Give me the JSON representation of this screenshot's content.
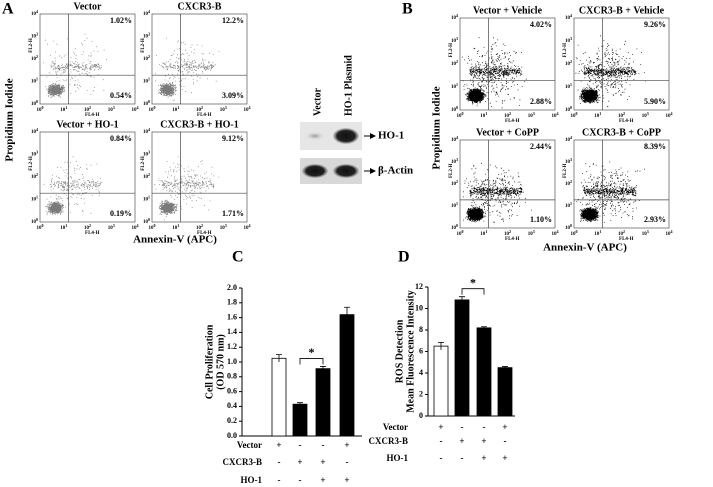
{
  "panel_a": {
    "letter": "A",
    "ylabel": "Propidium Iodide",
    "xlabel": "Annexin-V (APC)",
    "plots": [
      {
        "title": "Vector",
        "upper": "1.02%",
        "lower": "0.54%"
      },
      {
        "title": "CXCR3-B",
        "upper": "12.2%",
        "lower": "3.09%"
      },
      {
        "title": "Vector + HO-1",
        "upper": "0.84%",
        "lower": "0.19%"
      },
      {
        "title": "CXCR3-B + HO-1",
        "upper": "9.12%",
        "lower": "1.71%"
      }
    ]
  },
  "panel_b": {
    "letter": "B",
    "ylabel": "Propidium Iodide",
    "xlabel": "Annexin-V (APC)",
    "plots": [
      {
        "title": "Vector + Vehicle",
        "upper": "4.02%",
        "lower": "2.88%"
      },
      {
        "title": "CXCR3-B + Vehicle",
        "upper": "9.26%",
        "lower": "5.90%"
      },
      {
        "title": "Vector + CoPP",
        "upper": "2.44%",
        "lower": "1.10%"
      },
      {
        "title": "CXCR3-B + CoPP",
        "upper": "8.39%",
        "lower": "2.93%"
      }
    ]
  },
  "flow_axis": {
    "x_name": "FL4-H",
    "y_name": "FL2-H",
    "tick_base": "10",
    "tick_exps": [
      "0",
      "1",
      "2",
      "3",
      "4"
    ]
  },
  "blot": {
    "lanes": [
      "Vector",
      "HO-1 Plasmid"
    ],
    "bands": [
      "HO-1",
      "β-Actin"
    ]
  },
  "chart_data": [
    {
      "type": "bar",
      "letter": "C",
      "ylabel": [
        "Cell Proliferation",
        "(OD 570 nm)"
      ],
      "values": [
        1.05,
        0.43,
        0.91,
        1.64
      ],
      "errors": [
        0.05,
        0.02,
        0.03,
        0.1
      ],
      "colors": [
        "#ffffff",
        "#000000",
        "#000000",
        "#000000"
      ],
      "ylim": [
        0,
        2
      ],
      "yticks": [
        {
          "value": 0,
          "label": "0.0"
        },
        0.2,
        0.4,
        0.6,
        0.8,
        {
          "value": 1,
          "label": "1.0"
        },
        1.2,
        1.4,
        1.6,
        1.8,
        {
          "value": 2,
          "label": "2.0"
        }
      ],
      "annotation": "*",
      "treatments": [
        {
          "name": "Vector",
          "signs": [
            "+",
            "-",
            "-",
            "+"
          ]
        },
        {
          "name": "CXCR3-B",
          "signs": [
            "-",
            "+",
            "+",
            "-"
          ]
        },
        {
          "name": "HO-1",
          "signs": [
            "-",
            "-",
            "+",
            "+"
          ]
        }
      ]
    },
    {
      "type": "bar",
      "letter": "D",
      "ylabel": [
        "ROS Detection",
        "Mean Fluorescence Intensity"
      ],
      "values": [
        6.5,
        10.8,
        8.2,
        4.5
      ],
      "errors": [
        0.35,
        0.3,
        0.1,
        0.1
      ],
      "colors": [
        "#ffffff",
        "#000000",
        "#000000",
        "#000000"
      ],
      "ylim": [
        0,
        12
      ],
      "yticks": [
        0,
        2,
        4,
        6,
        8,
        10,
        12
      ],
      "annotation": "*",
      "treatments": [
        {
          "name": "Vector",
          "signs": [
            "+",
            "-",
            "-",
            "+"
          ]
        },
        {
          "name": "CXCR3-B",
          "signs": [
            "-",
            "+",
            "+",
            "-"
          ]
        },
        {
          "name": "HO-1",
          "signs": [
            "-",
            "-",
            "+",
            "+"
          ]
        }
      ]
    }
  ]
}
